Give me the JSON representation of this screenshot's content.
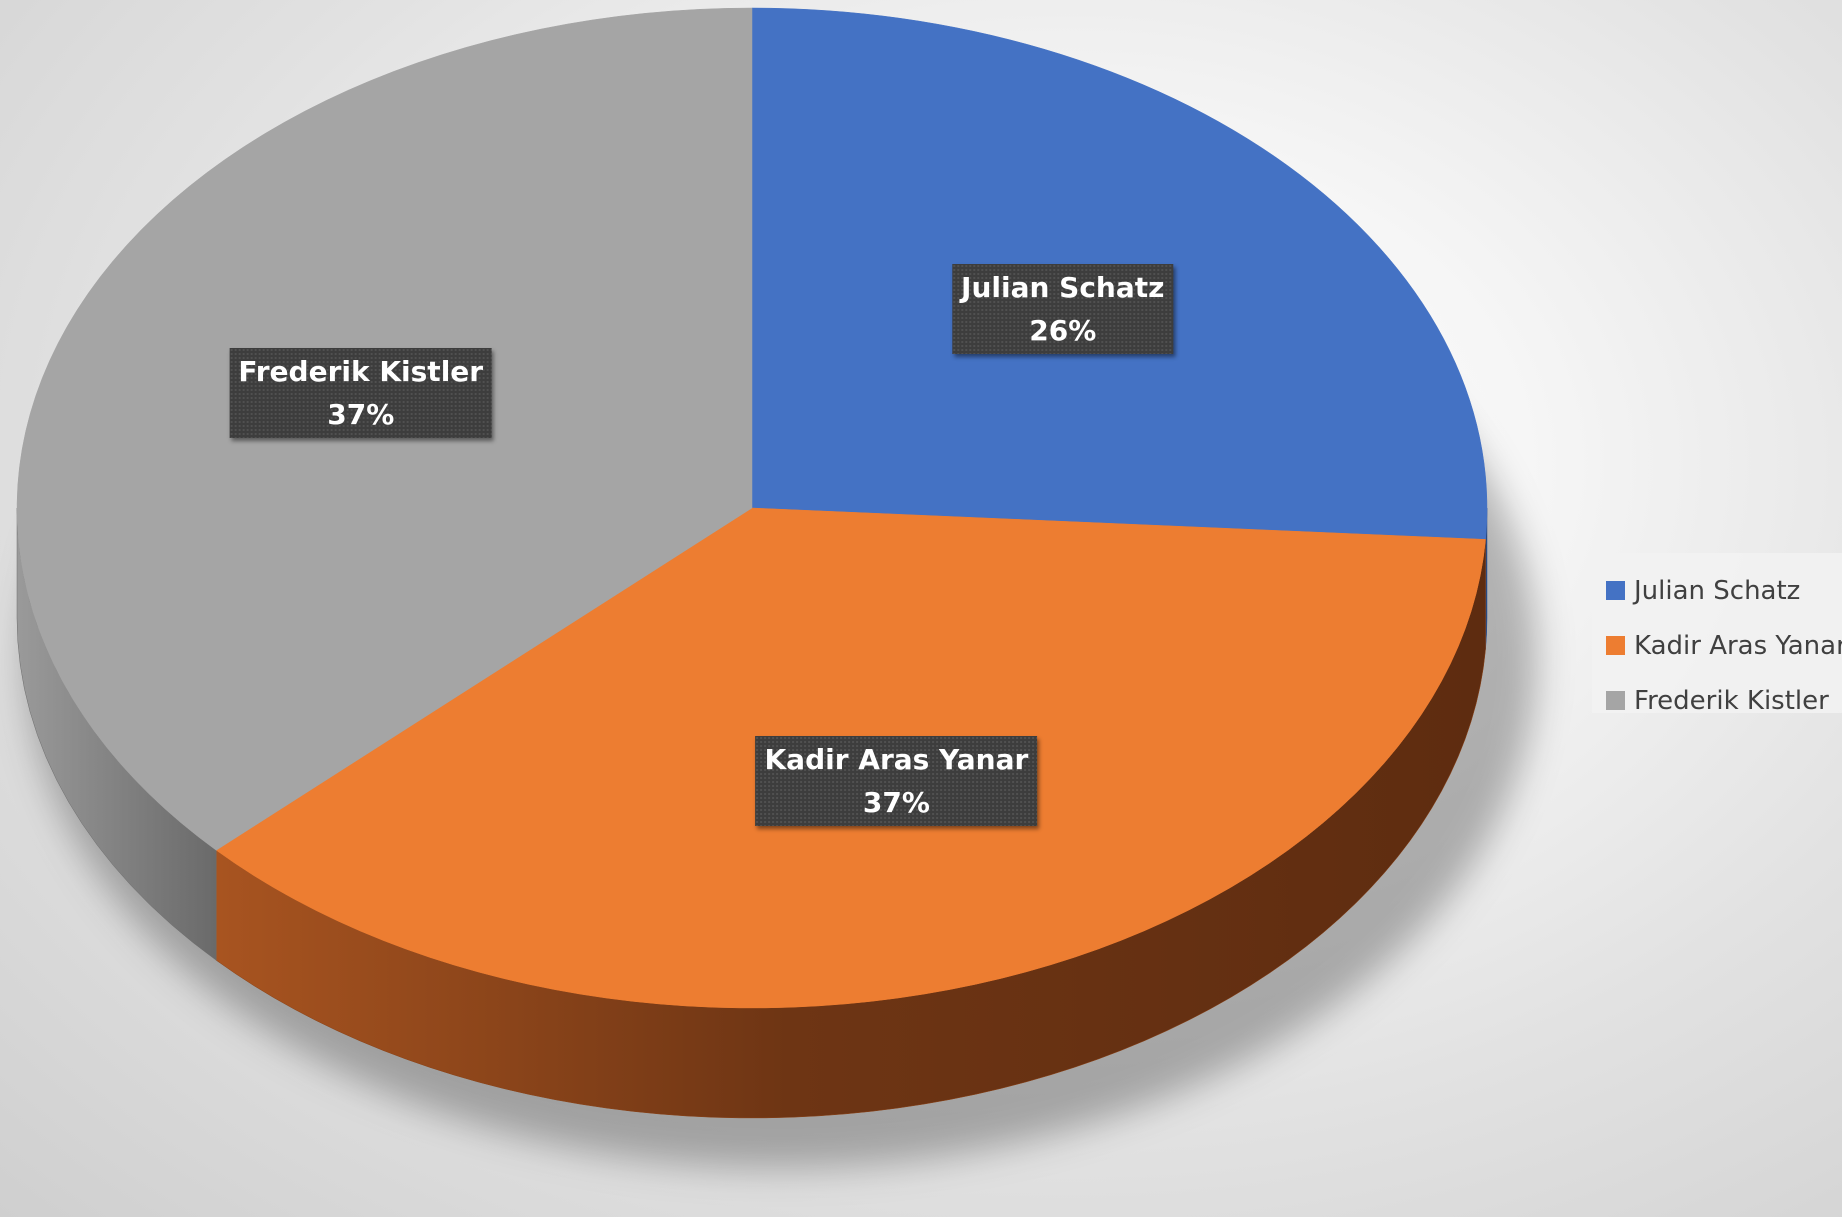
{
  "chart_data": {
    "type": "pie",
    "style": "3d",
    "title": "",
    "legend_position": "right",
    "categories": [
      "Julian Schatz",
      "Kadir Aras Yanar",
      "Frederik Kistler"
    ],
    "values": [
      26,
      37,
      37
    ],
    "percent_labels": [
      "26%",
      "37%",
      "37%"
    ],
    "colors": [
      "#4472C4",
      "#ED7D31",
      "#A5A5A5"
    ],
    "dark_colors": [
      "#2F528F",
      "#8A4115",
      "#6E6E6E"
    ]
  }
}
